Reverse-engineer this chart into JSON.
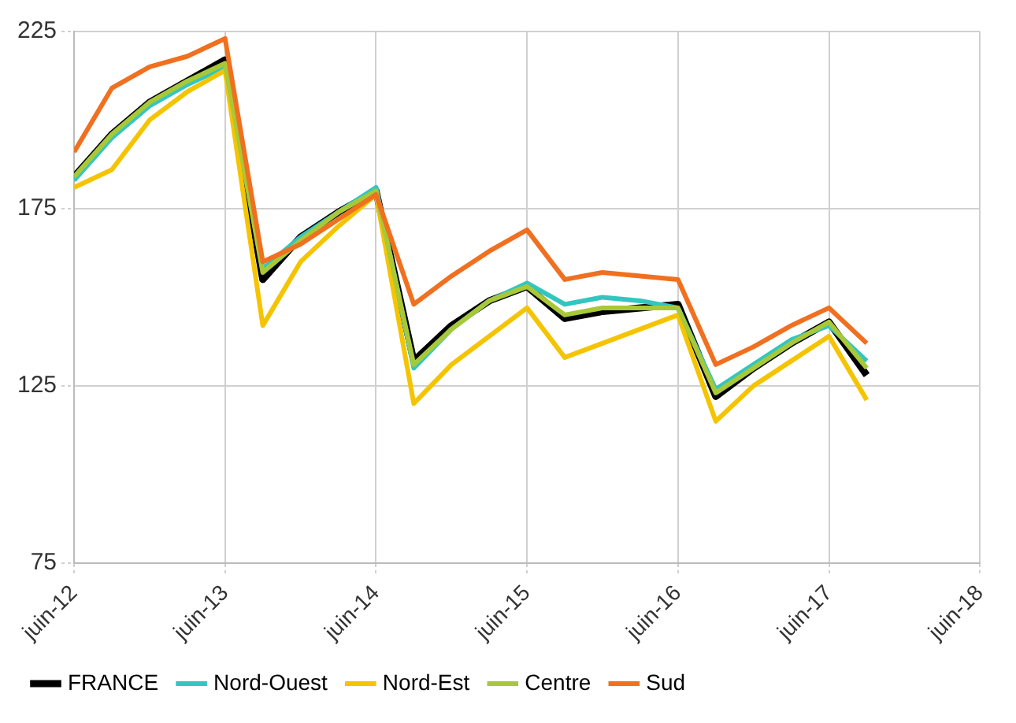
{
  "chart_data": {
    "type": "line",
    "x": [
      "2012-06",
      "2012-09",
      "2012-12",
      "2013-03",
      "2013-06",
      "2013-09",
      "2013-12",
      "2014-03",
      "2014-06",
      "2014-09",
      "2014-12",
      "2015-03",
      "2015-06",
      "2015-09",
      "2015-12",
      "2016-03",
      "2016-06",
      "2016-09",
      "2016-12",
      "2017-03",
      "2017-06",
      "2017-09"
    ],
    "series": [
      {
        "name": "FRANCE",
        "color": "#000000",
        "values": [
          184,
          196,
          205,
          211,
          217,
          155,
          167,
          174,
          180,
          132,
          142,
          149,
          153,
          144,
          146,
          147,
          148,
          122,
          130,
          137,
          143,
          128
        ]
      },
      {
        "name": "Nord-Ouest",
        "color": "#33c6c0",
        "values": [
          183,
          195,
          204,
          210,
          215,
          158,
          167,
          174,
          181,
          130,
          141,
          149,
          154,
          148,
          150,
          149,
          147,
          124,
          131,
          138,
          142,
          132
        ]
      },
      {
        "name": "Nord-Est",
        "color": "#f5c400",
        "values": [
          181,
          186,
          200,
          208,
          214,
          142,
          160,
          170,
          179,
          120,
          131,
          139,
          147,
          133,
          137,
          141,
          145,
          115,
          125,
          132,
          139,
          121
        ]
      },
      {
        "name": "Centre",
        "color": "#a8c838",
        "values": [
          184,
          196,
          205,
          211,
          216,
          157,
          166,
          174,
          180,
          131,
          141,
          149,
          153,
          145,
          147,
          147,
          147,
          123,
          130,
          137,
          143,
          130
        ]
      },
      {
        "name": "Sud",
        "color": "#f07020",
        "values": [
          191,
          209,
          215,
          218,
          223,
          160,
          165,
          172,
          179,
          148,
          156,
          163,
          169,
          155,
          157,
          156,
          155,
          131,
          136,
          142,
          147,
          137
        ]
      }
    ],
    "xlim": [
      "2012-06",
      "2018-06"
    ],
    "xticks": [
      {
        "value": "2012-06",
        "label": "juin-12"
      },
      {
        "value": "2013-06",
        "label": "juin-13"
      },
      {
        "value": "2014-06",
        "label": "juin-14"
      },
      {
        "value": "2015-06",
        "label": "juin-15"
      },
      {
        "value": "2016-06",
        "label": "juin-16"
      },
      {
        "value": "2017-06",
        "label": "juin-17"
      },
      {
        "value": "2018-06",
        "label": "juin-18"
      }
    ],
    "ylim": [
      75,
      225
    ],
    "yticks": [
      75,
      125,
      175,
      225
    ],
    "grid": true,
    "legend": "bottom",
    "marker": "none",
    "line_style": "solid"
  }
}
